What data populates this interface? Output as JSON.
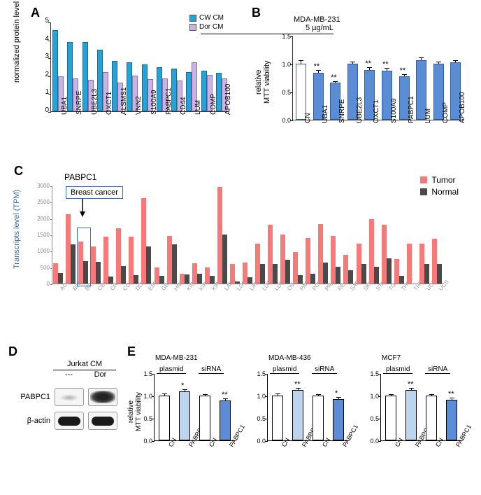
{
  "panelA": {
    "letter": "A",
    "ylabel": "normalized protein level",
    "ymax": 5,
    "ytick_step": 1,
    "series": [
      {
        "name": "CW CM",
        "color": "#25a3d9"
      },
      {
        "name": "Dor CM",
        "color": "#c9b3e3"
      }
    ],
    "categories": [
      "UBA1",
      "SNRPE",
      "UBE2L3",
      "OXCT1",
      "ALSMS1",
      "VNN2",
      "S100A9",
      "PABPC1",
      "CD44",
      "LUM",
      "COMP",
      "APOB100"
    ],
    "cw": [
      4.55,
      3.85,
      3.85,
      3.45,
      2.8,
      2.75,
      2.6,
      2.45,
      2.4,
      2.2,
      2.25,
      2.15
    ],
    "dor": [
      1.95,
      1.85,
      1.75,
      2.2,
      1.6,
      2.0,
      1.8,
      1.85,
      1.7,
      2.75,
      2.05,
      1.85
    ]
  },
  "panelB": {
    "letter": "B",
    "title": "MDA-MB-231",
    "note": "5 µg/mL",
    "ylabel": "relative\nMTT viability",
    "ymax": 1.5,
    "ytick_step": 0.5,
    "bar_color": "#5b8dd6",
    "cn_color": "#ffffff",
    "categories": [
      "CN",
      "UBA1",
      "SNRPE",
      "UBE2L3",
      "OXCT1",
      "S100A9",
      "PABPC1",
      "LUM",
      "COMP",
      "APOB100"
    ],
    "values": [
      1.0,
      0.84,
      0.66,
      1.0,
      0.89,
      0.87,
      0.78,
      1.06,
      1.0,
      1.02
    ],
    "err": [
      0.05,
      0.03,
      0.02,
      0.02,
      0.03,
      0.04,
      0.02,
      0.04,
      0.02,
      0.03
    ],
    "stars": [
      "",
      "**",
      "**",
      "",
      "**",
      "**",
      "**",
      "",
      "",
      ""
    ]
  },
  "panelC": {
    "letter": "C",
    "title": "PABPC1",
    "box_label": "Breast cancer",
    "highlight_idx": 2,
    "legend_tumor": {
      "label": "Tumor",
      "color": "#f77a7a"
    },
    "legend_normal": {
      "label": "Normal",
      "color": "#4a4a4a"
    },
    "ylabel": "Transcripts level (TPM)",
    "ymax": 3000,
    "ytick_step": 500,
    "categories": [
      "ACC",
      "BLCA",
      "BRCA",
      "CESC",
      "CHOL",
      "COAD",
      "DLBC",
      "ESCA",
      "GBM",
      "HNSC",
      "KICH",
      "KIRC",
      "KIRP",
      "LAML",
      "LGG",
      "LIHC",
      "LUAD",
      "LUSC",
      "OV",
      "PAAD",
      "PCPG",
      "PRAD",
      "READ",
      "SARC",
      "SKCM",
      "STAD",
      "TGCT",
      "THCA",
      "THYM",
      "UCEC",
      "UCS"
    ],
    "tumor": [
      630,
      2120,
      1280,
      1130,
      1440,
      1700,
      1440,
      2620,
      490,
      1460,
      290,
      630,
      490,
      2950,
      590,
      640,
      1230,
      1800,
      1500,
      960,
      1400,
      1820,
      1450,
      870,
      1230,
      1980,
      1800,
      740,
      1220,
      1230,
      1380
    ],
    "normal": [
      330,
      1190,
      690,
      660,
      210,
      540,
      250,
      1130,
      240,
      1200,
      280,
      310,
      230,
      1510,
      60,
      190,
      610,
      610,
      720,
      250,
      310,
      640,
      520,
      410,
      598,
      520,
      770,
      230,
      0,
      610,
      600
    ]
  },
  "panelD": {
    "letter": "D",
    "col_header": [
      "---",
      "Dor"
    ],
    "group": "Jurkat CM",
    "rows": [
      "PABPC1",
      "β-actin"
    ]
  },
  "panelE": {
    "letter": "E",
    "ylabel": "relative\nMTT viability",
    "ymax": 1.5,
    "ytick_step": 0.5,
    "groups": [
      "plasmid",
      "siRNA"
    ],
    "xlabels": [
      "CN",
      "PABPC1",
      "CN",
      "PABPC1"
    ],
    "colors": {
      "cn": "#ffffff",
      "plasmid": "#bcd4ee",
      "sirna": "#5b8dd6"
    },
    "subpanels": [
      {
        "title": "MDA-MB-231",
        "values": [
          1.0,
          1.09,
          1.0,
          0.89
        ],
        "err": [
          0.03,
          0.04,
          0.02,
          0.03
        ],
        "stars": [
          "",
          "*",
          "",
          "**"
        ]
      },
      {
        "title": "MDA-MB-436",
        "values": [
          1.0,
          1.12,
          1.0,
          0.92
        ],
        "err": [
          0.03,
          0.03,
          0.02,
          0.03
        ],
        "stars": [
          "",
          "**",
          "",
          "*"
        ]
      },
      {
        "title": "MCF7",
        "values": [
          1.0,
          1.12,
          1.0,
          0.9
        ],
        "err": [
          0.02,
          0.03,
          0.02,
          0.03
        ],
        "stars": [
          "",
          "**",
          "",
          "**"
        ]
      }
    ]
  }
}
